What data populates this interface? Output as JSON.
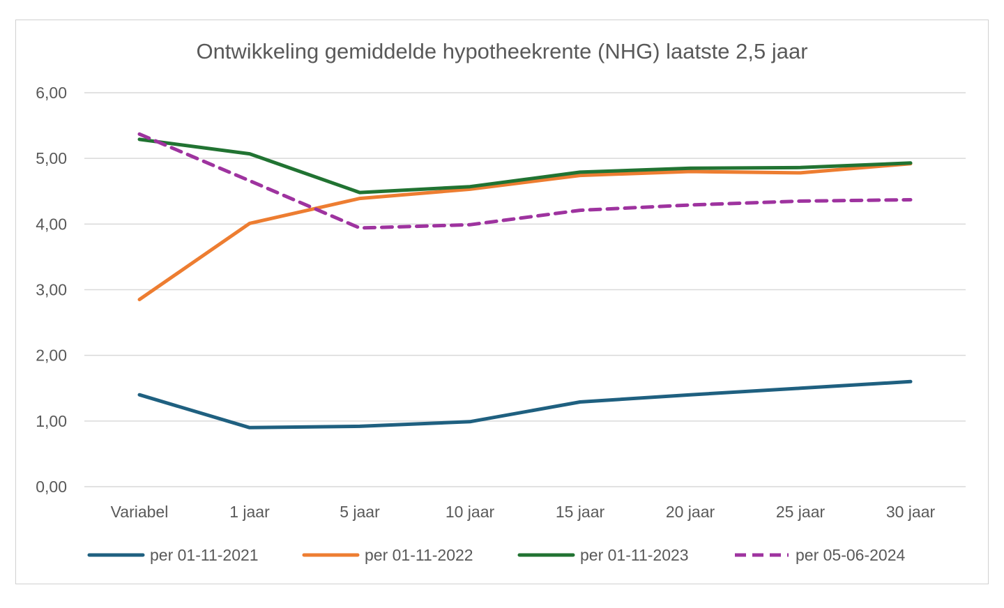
{
  "chart_data": {
    "type": "line",
    "title": "Ontwikkeling gemiddelde hypotheekrente (NHG) laatste 2,5 jaar",
    "xlabel": "",
    "ylabel": "",
    "categories": [
      "Variabel",
      "1 jaar",
      "5 jaar",
      "10 jaar",
      "15 jaar",
      "20 jaar",
      "25 jaar",
      "30 jaar"
    ],
    "ylim": [
      0,
      6
    ],
    "yticks": [
      0,
      1,
      2,
      3,
      4,
      5,
      6
    ],
    "ytick_labels": [
      "0,00",
      "1,00",
      "2,00",
      "3,00",
      "4,00",
      "5,00",
      "6,00"
    ],
    "grid": true,
    "legend_position": "bottom",
    "series": [
      {
        "name": "per 01-11-2021",
        "color": "#1f6080",
        "dashed": false,
        "values": [
          1.4,
          0.9,
          0.92,
          0.99,
          1.29,
          1.4,
          1.5,
          1.6
        ]
      },
      {
        "name": "per 01-11-2022",
        "color": "#ed7d31",
        "dashed": false,
        "values": [
          2.85,
          4.01,
          4.39,
          4.53,
          4.74,
          4.8,
          4.78,
          4.92
        ]
      },
      {
        "name": "per 01-11-2023",
        "color": "#217332",
        "dashed": false,
        "values": [
          5.29,
          5.07,
          4.48,
          4.57,
          4.79,
          4.85,
          4.86,
          4.93
        ]
      },
      {
        "name": "per 05-06-2024",
        "color": "#9e339f",
        "dashed": true,
        "values": [
          5.37,
          4.66,
          3.94,
          3.99,
          4.21,
          4.29,
          4.35,
          4.37
        ]
      }
    ]
  }
}
